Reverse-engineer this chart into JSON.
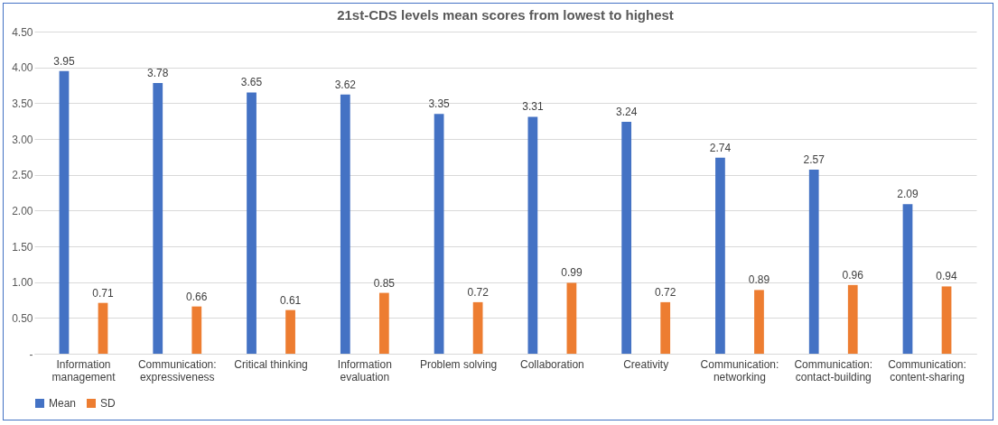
{
  "chart_data": {
    "type": "bar",
    "title": "21st-CDS levels mean scores from lowest to highest",
    "categories": [
      "Information management",
      "Communication: expressiveness",
      "Critical thinking",
      "Information evaluation",
      "Problem solving",
      "Collaboration",
      "Creativity",
      "Communication: networking",
      "Communication: contact-building",
      "Communication: content-sharing"
    ],
    "series": [
      {
        "name": "Mean",
        "color": "#4472c4",
        "values": [
          3.95,
          3.78,
          3.65,
          3.62,
          3.35,
          3.31,
          3.24,
          2.74,
          2.57,
          2.09
        ]
      },
      {
        "name": "SD",
        "color": "#ed7d31",
        "values": [
          0.71,
          0.66,
          0.61,
          0.85,
          0.72,
          0.99,
          0.72,
          0.89,
          0.96,
          0.94
        ]
      }
    ],
    "ylim": [
      0,
      4.5
    ],
    "yticks": [
      {
        "value": 0,
        "label": "-"
      },
      {
        "value": 0.5,
        "label": "0.50"
      },
      {
        "value": 1,
        "label": "1.00"
      },
      {
        "value": 1.5,
        "label": "1.50"
      },
      {
        "value": 2,
        "label": "2.00"
      },
      {
        "value": 2.5,
        "label": "2.50"
      },
      {
        "value": 3,
        "label": "3.00"
      },
      {
        "value": 3.5,
        "label": "3.50"
      },
      {
        "value": 4,
        "label": "4.00"
      },
      {
        "value": 4.5,
        "label": "4.50"
      }
    ],
    "grid": "y",
    "legend": "bottom",
    "data_labels": true
  }
}
